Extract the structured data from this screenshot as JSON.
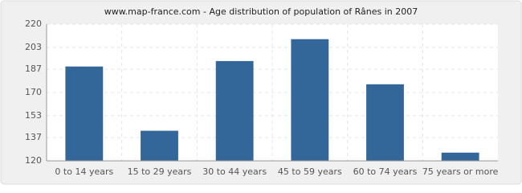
{
  "chart_data": {
    "type": "bar",
    "title": "www.map-france.com - Age distribution of population of Rânes in 2007",
    "categories": [
      "0 to 14 years",
      "15 to 29 years",
      "30 to 44 years",
      "45 to 59 years",
      "60 to 74 years",
      "75 years or more"
    ],
    "values": [
      189,
      142,
      193,
      209,
      176,
      126
    ],
    "color": "#336699",
    "ylim": [
      120,
      220
    ],
    "yticks": [
      120,
      137,
      153,
      170,
      187,
      203,
      220
    ],
    "grid": true
  }
}
